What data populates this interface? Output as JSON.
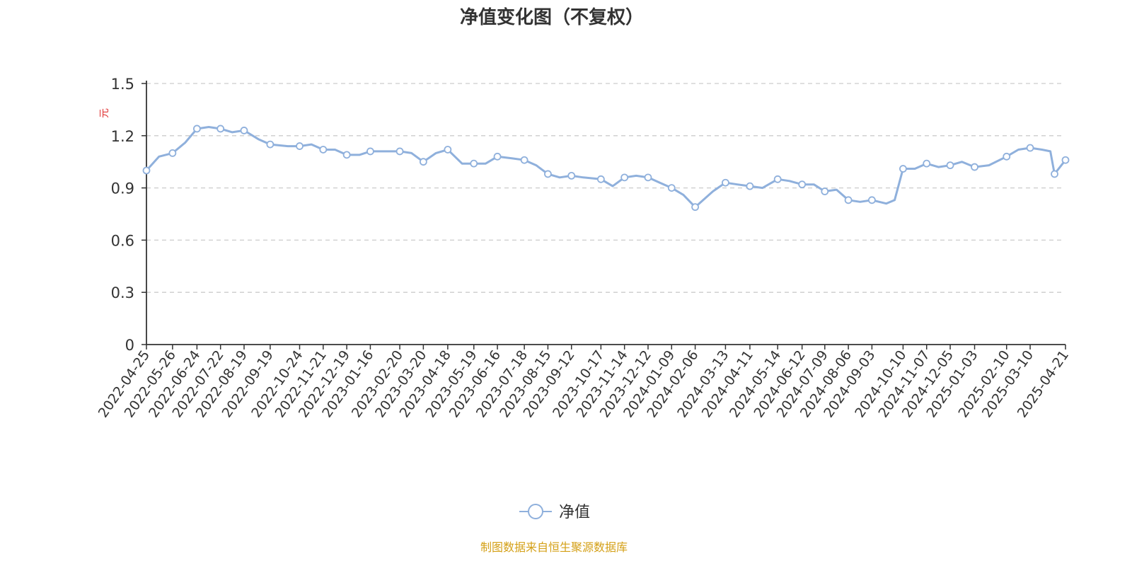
{
  "chart_data": {
    "type": "line",
    "title": "净值变化图（不复权）",
    "ylabel": "元",
    "ylim": [
      0,
      1.5
    ],
    "y_ticks": [
      "0",
      "0.3",
      "0.6",
      "0.9",
      "1.2",
      "1.5"
    ],
    "grid": true,
    "legend_position": "bottom",
    "x_tick_labels": [
      "2022-04-25",
      "2022-05-26",
      "2022-06-24",
      "2022-07-22",
      "2022-08-19",
      "2022-09-19",
      "2022-10-24",
      "2022-11-21",
      "2022-12-19",
      "2023-01-16",
      "2023-02-20",
      "2023-03-20",
      "2023-04-18",
      "2023-05-19",
      "2023-06-16",
      "2023-07-18",
      "2023-08-15",
      "2023-09-12",
      "2023-10-17",
      "2023-11-14",
      "2023-12-12",
      "2024-01-09",
      "2024-02-06",
      "2024-03-13",
      "2024-04-11",
      "2024-05-14",
      "2024-06-12",
      "2024-07-09",
      "2024-08-06",
      "2024-09-03",
      "2024-10-10",
      "2024-11-07",
      "2024-12-05",
      "2025-01-03",
      "2025-02-10",
      "2025-03-10",
      "2025-04-21"
    ],
    "series": [
      {
        "name": "净值",
        "color": "#8fb0dc",
        "x": [
          "2022-04-25",
          "2022-05-10",
          "2022-05-26",
          "2022-06-10",
          "2022-06-24",
          "2022-07-08",
          "2022-07-22",
          "2022-08-05",
          "2022-08-19",
          "2022-09-05",
          "2022-09-19",
          "2022-10-10",
          "2022-10-24",
          "2022-11-07",
          "2022-11-21",
          "2022-12-05",
          "2022-12-19",
          "2023-01-03",
          "2023-01-16",
          "2023-02-06",
          "2023-02-20",
          "2023-03-06",
          "2023-03-20",
          "2023-04-04",
          "2023-04-18",
          "2023-05-05",
          "2023-05-19",
          "2023-06-02",
          "2023-06-16",
          "2023-07-03",
          "2023-07-18",
          "2023-08-01",
          "2023-08-15",
          "2023-08-29",
          "2023-09-12",
          "2023-09-26",
          "2023-10-17",
          "2023-10-31",
          "2023-11-14",
          "2023-11-28",
          "2023-12-12",
          "2023-12-26",
          "2024-01-09",
          "2024-01-23",
          "2024-02-06",
          "2024-02-27",
          "2024-03-13",
          "2024-03-27",
          "2024-04-11",
          "2024-04-26",
          "2024-05-14",
          "2024-05-28",
          "2024-06-12",
          "2024-06-26",
          "2024-07-09",
          "2024-07-23",
          "2024-08-06",
          "2024-08-20",
          "2024-09-03",
          "2024-09-20",
          "2024-09-30",
          "2024-10-10",
          "2024-10-24",
          "2024-11-07",
          "2024-11-21",
          "2024-12-05",
          "2024-12-19",
          "2025-01-03",
          "2025-01-20",
          "2025-02-10",
          "2025-02-24",
          "2025-03-10",
          "2025-03-24",
          "2025-04-03",
          "2025-04-08",
          "2025-04-21"
        ],
        "values": [
          1.0,
          1.08,
          1.1,
          1.16,
          1.24,
          1.25,
          1.24,
          1.22,
          1.23,
          1.18,
          1.15,
          1.14,
          1.14,
          1.15,
          1.12,
          1.12,
          1.09,
          1.09,
          1.11,
          1.11,
          1.11,
          1.1,
          1.05,
          1.1,
          1.12,
          1.04,
          1.04,
          1.04,
          1.08,
          1.07,
          1.06,
          1.03,
          0.98,
          0.96,
          0.97,
          0.96,
          0.95,
          0.91,
          0.96,
          0.97,
          0.96,
          0.93,
          0.9,
          0.86,
          0.79,
          0.88,
          0.93,
          0.92,
          0.91,
          0.9,
          0.95,
          0.94,
          0.92,
          0.92,
          0.88,
          0.89,
          0.83,
          0.82,
          0.83,
          0.81,
          0.83,
          1.01,
          1.01,
          1.04,
          1.02,
          1.03,
          1.05,
          1.02,
          1.03,
          1.08,
          1.12,
          1.13,
          1.12,
          1.11,
          0.98,
          1.06
        ]
      }
    ],
    "marker_dates": [
      "2022-04-25",
      "2022-05-26",
      "2022-06-24",
      "2022-07-22",
      "2022-08-19",
      "2022-09-19",
      "2022-10-24",
      "2022-11-21",
      "2022-12-19",
      "2023-01-16",
      "2023-02-20",
      "2023-03-20",
      "2023-04-18",
      "2023-05-19",
      "2023-06-16",
      "2023-07-18",
      "2023-08-15",
      "2023-09-12",
      "2023-10-17",
      "2023-11-14",
      "2023-12-12",
      "2024-01-09",
      "2024-02-06",
      "2024-03-13",
      "2024-04-11",
      "2024-05-14",
      "2024-06-12",
      "2024-07-09",
      "2024-08-06",
      "2024-09-03",
      "2024-10-10",
      "2024-11-07",
      "2024-12-05",
      "2025-01-03",
      "2025-02-10",
      "2025-03-10",
      "2025-04-08",
      "2025-04-21"
    ]
  },
  "footer": {
    "source_text": "制图数据来自恒生聚源数据库",
    "source_color": "#d4a017"
  },
  "colors": {
    "line": "#8fb0dc",
    "grid": "#cccccc",
    "axis": "#333333",
    "unit": "#e03030"
  }
}
